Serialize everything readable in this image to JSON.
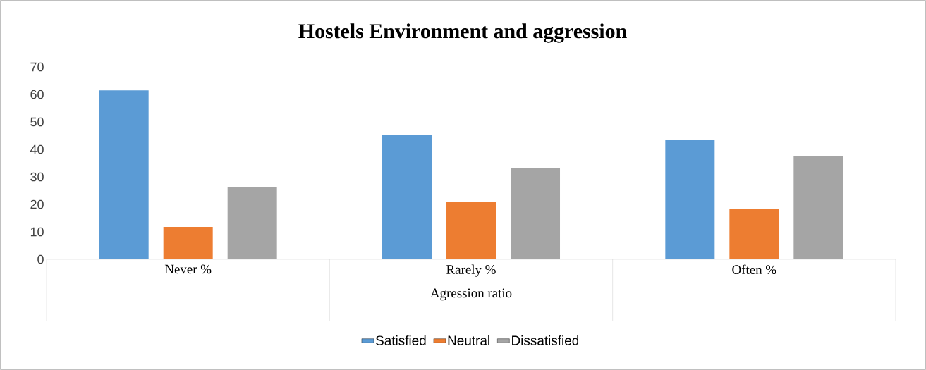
{
  "chart_data": {
    "type": "bar",
    "title": "Hostels Environment and aggression",
    "xlabel": "Agression ratio",
    "categories": [
      "Never %",
      "Rarely %",
      "Often %"
    ],
    "series": [
      {
        "name": "Satisfied",
        "color": "#5b9bd5",
        "values": [
          61.5,
          45.4,
          43.3
        ]
      },
      {
        "name": "Neutral",
        "color": "#ed7d31",
        "values": [
          11.8,
          21.0,
          18.2
        ]
      },
      {
        "name": "Dissatisfied",
        "color": "#a5a5a5",
        "values": [
          26.2,
          33.1,
          37.7
        ]
      }
    ],
    "ylim": [
      0,
      70
    ],
    "yticks": [
      0,
      10,
      20,
      30,
      40,
      50,
      60,
      70
    ],
    "grid": false,
    "legend": "bottom"
  }
}
